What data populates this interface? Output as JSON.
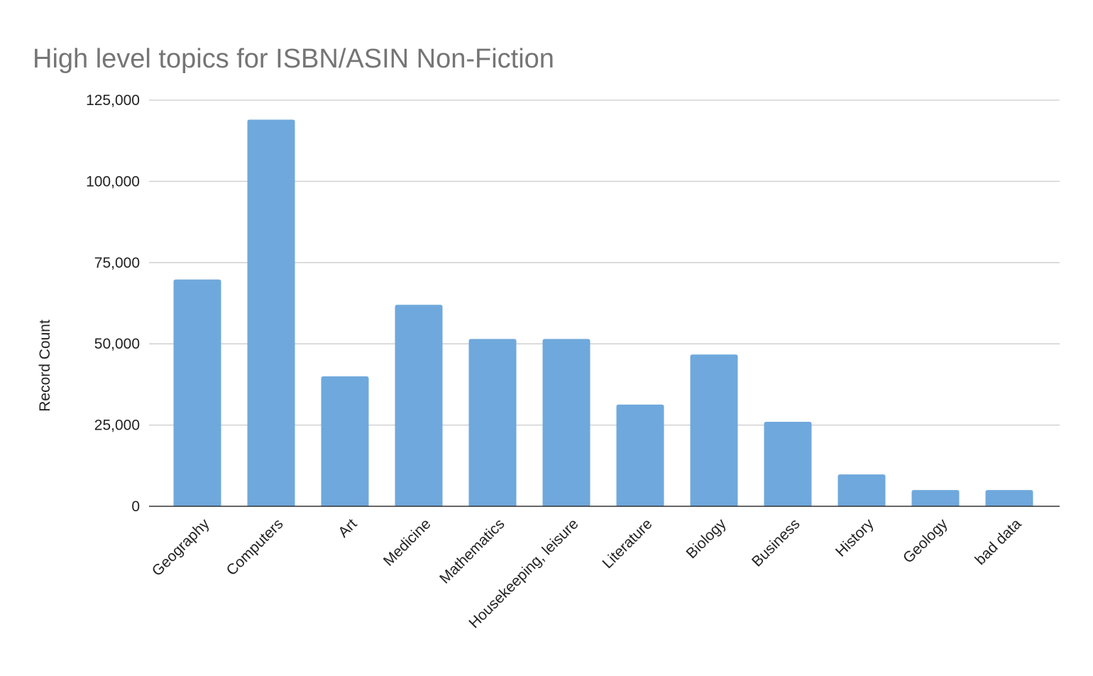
{
  "chart_data": {
    "type": "bar",
    "title": "High level topics for ISBN/ASIN Non-Fiction",
    "xlabel": "",
    "ylabel": "Record Count",
    "categories": [
      "Geography",
      "Computers",
      "Art",
      "Medicine",
      "Mathematics",
      "Housekeeping, leisure",
      "Literature",
      "Biology",
      "Business",
      "History",
      "Geology",
      "bad data"
    ],
    "values": [
      69800,
      119000,
      40000,
      62000,
      51500,
      51500,
      31300,
      46700,
      26000,
      9800,
      5000,
      5000
    ],
    "ylim": [
      0,
      125000
    ],
    "yticks": [
      0,
      25000,
      50000,
      75000,
      100000,
      125000
    ],
    "ytick_labels": [
      "0",
      "25,000",
      "50,000",
      "75,000",
      "100,000",
      "125,000"
    ],
    "grid": true,
    "legend": "none",
    "colors": {
      "bar": "#6fa8dc",
      "title": "#757575",
      "grid": "#cccccc",
      "axis": "#333333",
      "text": "#222222"
    }
  }
}
